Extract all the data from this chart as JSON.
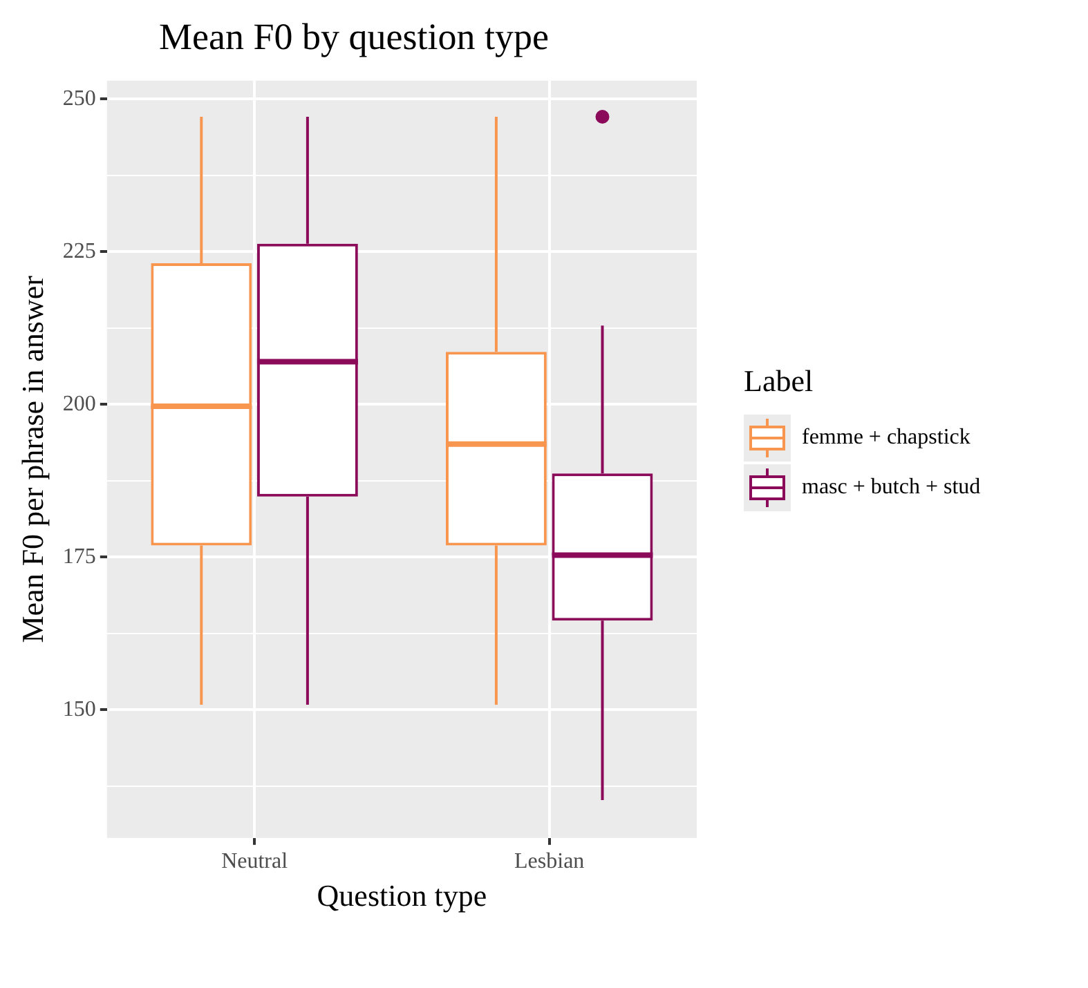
{
  "chart_data": {
    "type": "box",
    "title": "Mean F0 by question type",
    "xlabel": "Question type",
    "ylabel": "Mean F0 per phrase in answer",
    "legend_title": "Label",
    "legend": "right",
    "grid": true,
    "categories": [
      "Neutral",
      "Lesbian"
    ],
    "ylim": [
      129,
      253
    ],
    "yticks": [
      {
        "value": 137.5,
        "label": null
      },
      150,
      {
        "value": 162.5,
        "label": null
      },
      175,
      {
        "value": 187.5,
        "label": null
      },
      200,
      {
        "value": 212.5,
        "label": null
      },
      225,
      {
        "value": 237.5,
        "label": null
      },
      250
    ],
    "series": [
      {
        "name": "femme + chapstick",
        "color": "#f8954f",
        "boxes": [
          {
            "low": 150.8,
            "q1": 176.9,
            "median": 199.7,
            "q3": 223.1,
            "high": 247.1
          },
          {
            "low": 150.8,
            "q1": 176.9,
            "median": 193.5,
            "q3": 208.6,
            "high": 247.1
          }
        ]
      },
      {
        "name": "masc + butch + stud",
        "color": "#8b0a5a",
        "boxes": [
          {
            "low": 150.8,
            "q1": 184.9,
            "median": 207.0,
            "q3": 226.3,
            "high": 247.1
          },
          {
            "low": 135.2,
            "q1": 164.6,
            "median": 175.3,
            "q3": 188.7,
            "high": 212.9,
            "outliers": [
              247.1
            ]
          }
        ]
      }
    ]
  }
}
